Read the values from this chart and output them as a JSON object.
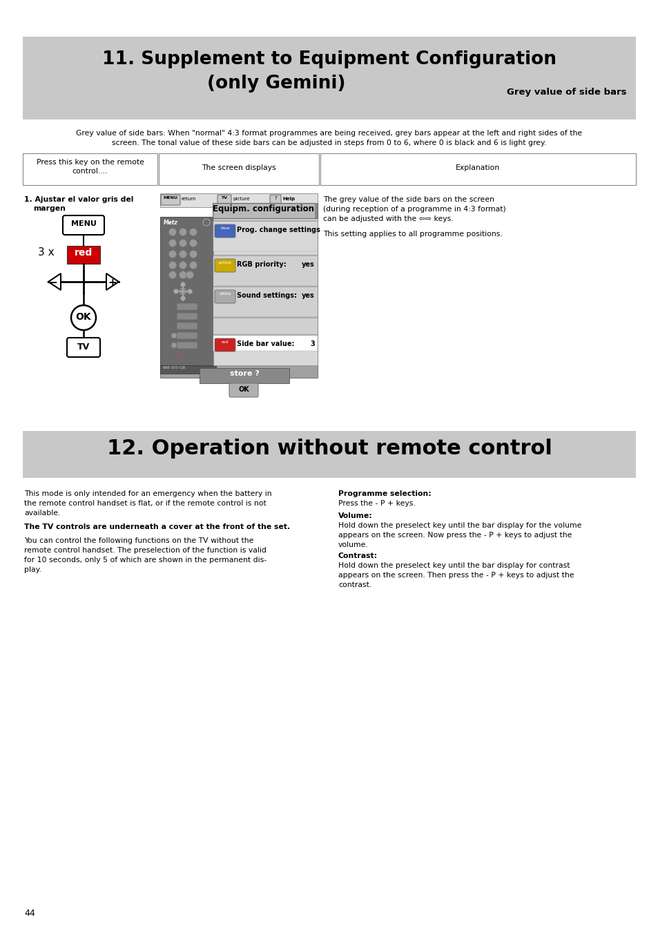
{
  "page_bg": "#ffffff",
  "s1_bg": "#c8c8c8",
  "s2_bg": "#c8c8c8",
  "s1_title1": "11. Supplement to Equipment Configuration",
  "s1_title2": "(only Gemini)",
  "s1_subtitle": "Grey value of side bars",
  "s2_title": "12. Operation without remote control",
  "intro1": "Grey value of side bars: When \"normal\" 4:3 format programmes are being received, grey bars appear at the left and right sides of the",
  "intro2": "screen. The tonal value of these side bars can be adjusted in steps from 0 to 6, where 0 is black and 6 is light grey.",
  "col1_hdr1": "Press this key on the remote",
  "col1_hdr2": "control....",
  "col2_hdr": "The screen displays",
  "col3_hdr": "Explanation",
  "step_label": "1. Ajustar el valor gris del",
  "step_label2": "margen",
  "three_x": "3 x",
  "red_label": "red",
  "nav_bar_text": "MENU  return        TV  picture                ? Help",
  "equipm_label": "Equipm. configuration",
  "expl1": "The grey value of the side bars on the screen",
  "expl2": "(during reception of a programme in 4:3 format)",
  "expl3": "can be adjusted with the ⇦⇨ keys.",
  "expl4": "This setting applies to all programme positions.",
  "prog_sel": "Programme selection:",
  "press_p": "Press the - P + keys.",
  "volume_label": "Volume:",
  "volume_text1": "Hold down the preselect key until the bar display for the volume",
  "volume_text2": "appears on the screen. Now press the - P + keys to adjust the",
  "volume_text3": "volume.",
  "contrast_label": "Contrast:",
  "contrast_text1": "Hold down the preselect key until the bar display for contrast",
  "contrast_text2": "appears on the screen. Then press the - P + keys to adjust the",
  "contrast_text3": "contrast.",
  "left_col_s2_1": "This mode is only intended for an emergency when the battery in",
  "left_col_s2_2": "the remote control handset is flat, or if the remote control is not",
  "left_col_s2_3": "available.",
  "left_col_s2_4": "The TV controls are underneath a cover at the front of the set.",
  "left_col_s2_5": "You can control the following functions on the TV without the",
  "left_col_s2_6": "remote control handset. The preselection of the function is valid",
  "left_col_s2_7": "for 10 seconds, only 5 of which are shown in the permanent dis-",
  "left_col_s2_8": "play.",
  "page_num": "44",
  "serial": "698-055-GB"
}
